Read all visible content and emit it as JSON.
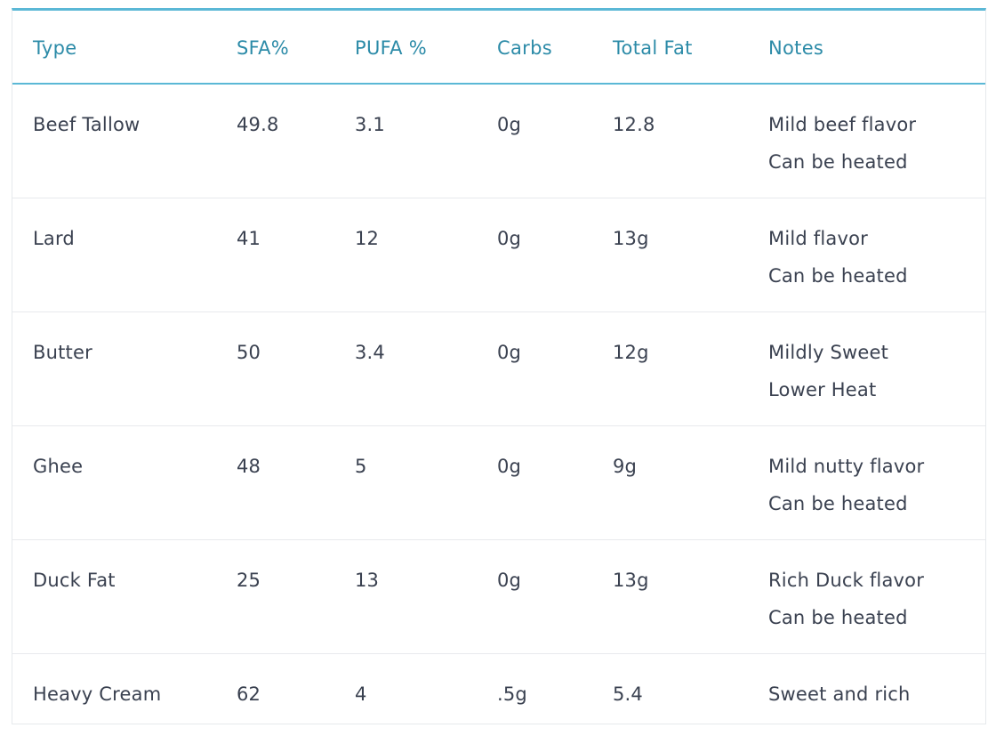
{
  "table": {
    "headers": [
      "Type",
      "SFA%",
      "PUFA %",
      "Carbs",
      "Total Fat",
      "Notes"
    ],
    "rows": [
      {
        "type": "Beef Tallow",
        "sfa": "49.8",
        "pufa": "3.1",
        "carbs": "0g",
        "total_fat": "12.8",
        "notes": [
          "Mild beef flavor",
          "Can be heated"
        ]
      },
      {
        "type": "Lard",
        "sfa": "41",
        "pufa": "12",
        "carbs": "0g",
        "total_fat": "13g",
        "notes": [
          "Mild flavor",
          "Can be heated"
        ]
      },
      {
        "type": "Butter",
        "sfa": "50",
        "pufa": "3.4",
        "carbs": "0g",
        "total_fat": "12g",
        "notes": [
          "Mildly Sweet",
          "Lower Heat"
        ]
      },
      {
        "type": "Ghee",
        "sfa": "48",
        "pufa": "5",
        "carbs": "0g",
        "total_fat": "9g",
        "notes": [
          "Mild nutty flavor",
          "Can be heated"
        ]
      },
      {
        "type": "Duck Fat",
        "sfa": "25",
        "pufa": "13",
        "carbs": "0g",
        "total_fat": "13g",
        "notes": [
          "Rich Duck flavor",
          "Can be heated"
        ]
      },
      {
        "type": "Heavy Cream",
        "sfa": "62",
        "pufa": "4",
        "carbs": ".5g",
        "total_fat": "5.4",
        "notes": [
          "Sweet and rich"
        ]
      }
    ]
  },
  "colors": {
    "accent": "#5bb8d6",
    "header_text": "#2c8ba8",
    "body_text": "#3a4150",
    "row_divider": "#e8eaed"
  }
}
